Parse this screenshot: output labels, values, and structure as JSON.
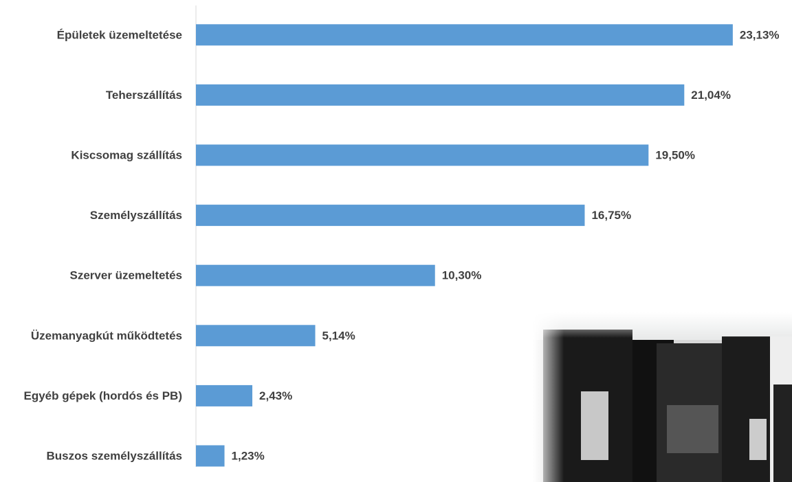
{
  "chart_data": {
    "type": "barh",
    "categories": [
      "Épületek üzemeltetése",
      "Teherszállítás",
      "Kiscsomag szállítás",
      "Személyszállítás",
      "Szerver üzemeltetés",
      "Üzemanyagkút működtetés",
      "Egyéb gépek (hordós és PB)",
      "Buszos személyszállítás"
    ],
    "values": [
      23.13,
      21.04,
      19.5,
      16.75,
      10.3,
      5.14,
      2.43,
      1.23
    ],
    "value_labels": [
      "23,13%",
      "21,04%",
      "19,50%",
      "16,75%",
      "10,30%",
      "5,14%",
      "2,43%",
      "1,23%"
    ],
    "color": "#5b9bd5",
    "xlim": [
      0,
      25
    ]
  }
}
